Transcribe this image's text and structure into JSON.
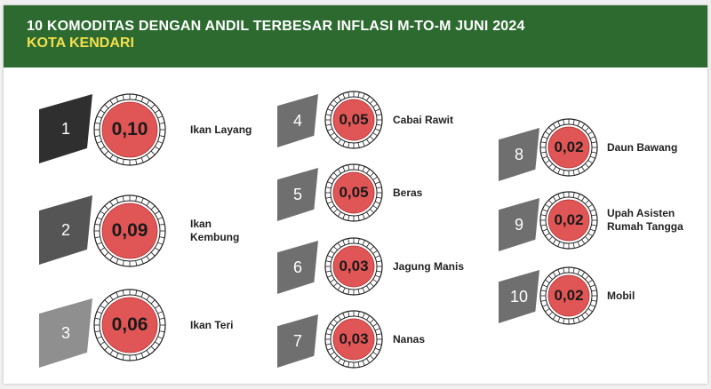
{
  "header": {
    "title": "10 KOMODITAS DENGAN ANDIL TERBESAR INFLASI M-TO-M JUNI 2024",
    "subtitle": "KOTA KENDARI"
  },
  "colors": {
    "header_bg": "#2d6a30",
    "subtitle": "#f4e04d",
    "circle_fill": "#e05555",
    "rank_1": "#2f2f2f",
    "rank_2": "#555555",
    "rank_3": "#8f8f8f",
    "rank_other": "#6f6f6f"
  },
  "items": [
    {
      "rank": "1",
      "value": "0,10",
      "label": "Ikan Layang"
    },
    {
      "rank": "2",
      "value": "0,09",
      "label": "Ikan\nKembung"
    },
    {
      "rank": "3",
      "value": "0,06",
      "label": "Ikan Teri"
    },
    {
      "rank": "4",
      "value": "0,05",
      "label": "Cabai Rawit"
    },
    {
      "rank": "5",
      "value": "0,05",
      "label": "Beras"
    },
    {
      "rank": "6",
      "value": "0,03",
      "label": "Jagung Manis"
    },
    {
      "rank": "7",
      "value": "0,03",
      "label": "Nanas"
    },
    {
      "rank": "8",
      "value": "0,02",
      "label": "Daun Bawang"
    },
    {
      "rank": "9",
      "value": "0,02",
      "label": "Upah Asisten\nRumah Tangga"
    },
    {
      "rank": "10",
      "value": "0,02",
      "label": "Mobil"
    }
  ]
}
